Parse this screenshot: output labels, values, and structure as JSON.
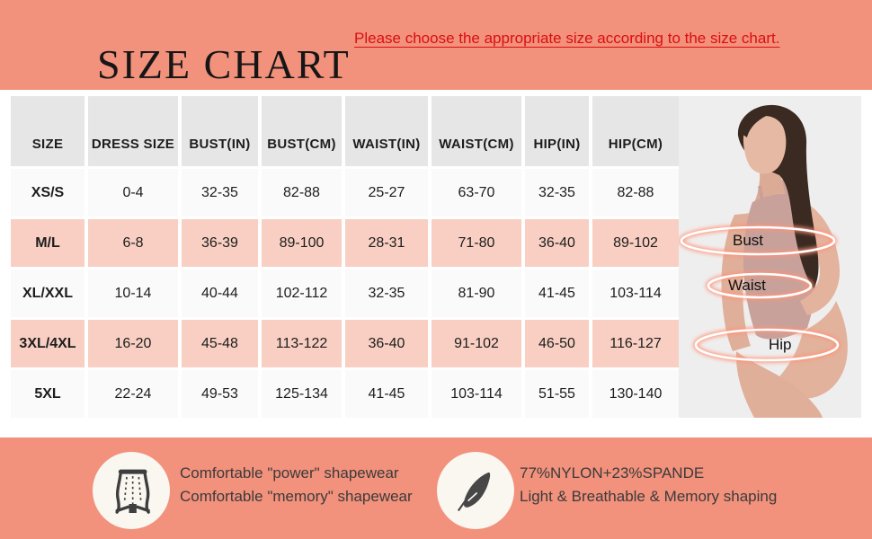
{
  "header": {
    "title": "SIZE CHART",
    "subtitle": "Please choose the appropriate size according to the size chart."
  },
  "table": {
    "headers": [
      "SIZE",
      "DRESS SIZE",
      "BUST(IN)",
      "BUST(CM)",
      "WAIST(IN)",
      "WAIST(CM)",
      "HIP(IN)",
      "HIP(CM)"
    ],
    "rows": [
      {
        "size": "XS/S",
        "values": [
          "0-4",
          "32-35",
          "82-88",
          "25-27",
          "63-70",
          "32-35",
          "82-88"
        ]
      },
      {
        "size": "M/L",
        "values": [
          "6-8",
          "36-39",
          "89-100",
          "28-31",
          "71-80",
          "36-40",
          "89-102"
        ]
      },
      {
        "size": "XL/XXL",
        "values": [
          "10-14",
          "40-44",
          "102-112",
          "32-35",
          "81-90",
          "41-45",
          "103-114"
        ]
      },
      {
        "size": "3XL/4XL",
        "values": [
          "16-20",
          "45-48",
          "113-122",
          "36-40",
          "91-102",
          "46-50",
          "116-127"
        ]
      },
      {
        "size": "5XL",
        "values": [
          "22-24",
          "49-53",
          "125-134",
          "41-45",
          "103-114",
          "51-55",
          "130-140"
        ]
      }
    ]
  },
  "figure": {
    "measurement_labels": [
      "Bust",
      "Waist",
      "Hip"
    ]
  },
  "features": [
    {
      "icon": "shapewear-icon",
      "lines": [
        "Comfortable \"power\" shapewear",
        "Comfortable \"memory\" shapewear"
      ]
    },
    {
      "icon": "feather-icon",
      "lines": [
        "77%NYLON+23%SPANDE",
        "Light & Breathable & Memory shaping"
      ]
    }
  ],
  "colors": {
    "background": "#f2917c",
    "row_pink": "#f8cfc2",
    "header_gray": "#e7e6e6",
    "accent_red": "#da0f0f",
    "photo_background": "#efeeee"
  }
}
